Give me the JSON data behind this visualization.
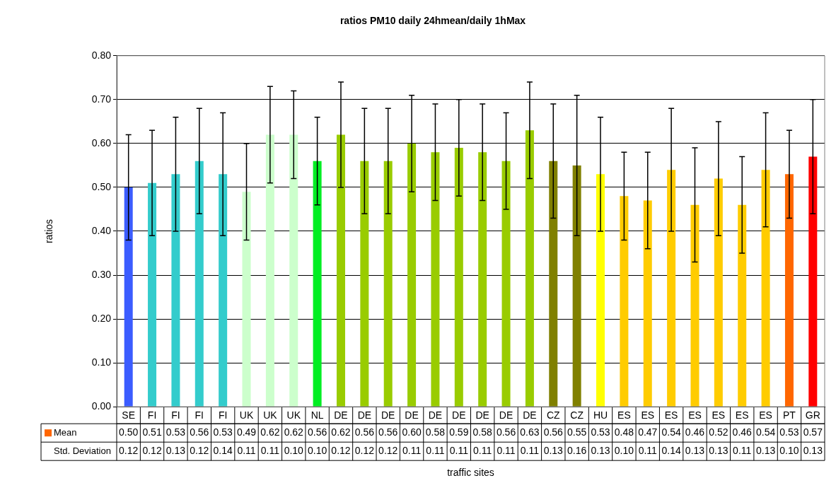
{
  "chart_data": {
    "type": "bar",
    "title": "ratios PM10 daily 24hmean/daily 1hMax",
    "xlabel": "traffic sites",
    "ylabel": "ratios",
    "categories": [
      "SE",
      "FI",
      "FI",
      "FI",
      "FI",
      "UK",
      "UK",
      "UK",
      "NL",
      "DE",
      "DE",
      "DE",
      "DE",
      "DE",
      "DE",
      "DE",
      "DE",
      "DE",
      "CZ",
      "CZ",
      "HU",
      "ES",
      "ES",
      "ES",
      "ES",
      "ES",
      "ES",
      "ES",
      "PT",
      "GR"
    ],
    "series": [
      {
        "name": "Mean",
        "color": "#ff6600",
        "colors": [
          "#3b5cff",
          "#33cccc",
          "#33cccc",
          "#33cccc",
          "#33cccc",
          "#ccffcc",
          "#ccffcc",
          "#ccffcc",
          "#00ee22",
          "#99cc00",
          "#99cc00",
          "#99cc00",
          "#99cc00",
          "#99cc00",
          "#99cc00",
          "#99cc00",
          "#99cc00",
          "#99cc00",
          "#808000",
          "#808000",
          "#ffff00",
          "#ffcc00",
          "#ffcc00",
          "#ffcc00",
          "#ffcc00",
          "#ffcc00",
          "#ffcc00",
          "#ffcc00",
          "#ff6600",
          "#ff0000"
        ],
        "values": [
          0.5,
          0.51,
          0.53,
          0.56,
          0.53,
          0.49,
          0.62,
          0.62,
          0.56,
          0.62,
          0.56,
          0.56,
          0.6,
          0.58,
          0.59,
          0.58,
          0.56,
          0.63,
          0.56,
          0.55,
          0.53,
          0.48,
          0.47,
          0.54,
          0.46,
          0.52,
          0.46,
          0.54,
          0.53,
          0.57
        ],
        "value_labels": [
          "0.50",
          "0.51",
          "0.53",
          "0.56",
          "0.53",
          "0.49",
          "0.62",
          "0.62",
          "0.56",
          "0.62",
          "0.56",
          "0.56",
          "0.60",
          "0.58",
          "0.59",
          "0.58",
          "0.56",
          "0.63",
          "0.56",
          "0.55",
          "0.53",
          "0.48",
          "0.47",
          "0.54",
          "0.46",
          "0.52",
          "0.46",
          "0.54",
          "0.53",
          "0.57"
        ],
        "errors": [
          0.12,
          0.12,
          0.13,
          0.12,
          0.14,
          0.11,
          0.11,
          0.1,
          0.1,
          0.12,
          0.12,
          0.12,
          0.11,
          0.11,
          0.11,
          0.11,
          0.11,
          0.11,
          0.13,
          0.16,
          0.13,
          0.1,
          0.11,
          0.14,
          0.13,
          0.13,
          0.11,
          0.13,
          0.1,
          0.13
        ]
      }
    ],
    "annotations": [
      "Std. Deviation",
      "0.12",
      "0.12",
      "0.13",
      "0.12",
      "0.14",
      "0.11",
      "0.11",
      "0.10",
      "0.10",
      "0.12",
      "0.12",
      "0.12",
      "0.11",
      "0.11",
      "0.11",
      "0.11",
      "0.11",
      "0.11",
      "0.13",
      "0.16",
      "0.13",
      "0.10",
      "0.11",
      "0.14",
      "0.13",
      "0.13",
      "0.11",
      "0.13",
      "0.10",
      "0.13"
    ],
    "ylim": [
      0,
      0.8
    ],
    "yticks": [
      {
        "value": 0,
        "label": "0.00"
      },
      {
        "value": 0.1,
        "label": "0.10"
      },
      {
        "value": 0.2,
        "label": "0.20"
      },
      {
        "value": 0.3,
        "label": "0.30"
      },
      {
        "value": 0.4,
        "label": "0.40"
      },
      {
        "value": 0.5,
        "label": "0.50"
      },
      {
        "value": 0.6,
        "label": "0.60"
      },
      {
        "value": 0.7,
        "label": "0.70"
      },
      {
        "value": 0.8,
        "label": "0.80"
      }
    ],
    "grid": "y",
    "legend": "bottom left"
  }
}
